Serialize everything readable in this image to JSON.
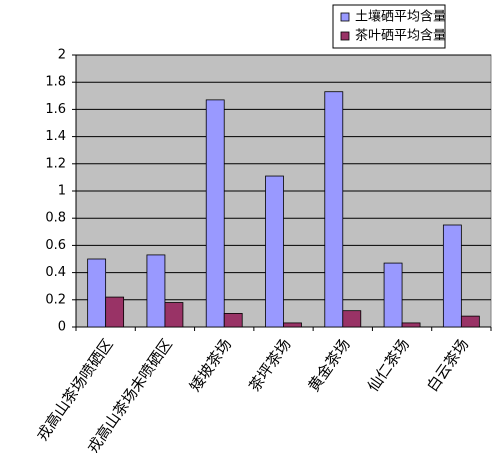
{
  "chart_data": {
    "type": "bar",
    "categories": [
      "戎高山茶场喷硒区",
      "戎高山茶场未喷硒区",
      "矮坡茶场",
      "茶坪茶场",
      "黄金茶场",
      "仙仁茶场",
      "白云茶场"
    ],
    "series": [
      {
        "name": "土壤硒平均含量",
        "color": "#9999ff",
        "values": [
          0.5,
          0.53,
          1.67,
          1.11,
          1.73,
          0.47,
          0.75
        ]
      },
      {
        "name": "茶叶硒平均含量",
        "color": "#993366",
        "values": [
          0.22,
          0.18,
          0.1,
          0.03,
          0.12,
          0.03,
          0.08
        ]
      }
    ],
    "ylim": [
      0,
      2
    ],
    "yticks": [
      0,
      0.2,
      0.4,
      0.6,
      0.8,
      1,
      1.2,
      1.4,
      1.6,
      1.8,
      2
    ],
    "grid": true,
    "legend": "top-right"
  }
}
